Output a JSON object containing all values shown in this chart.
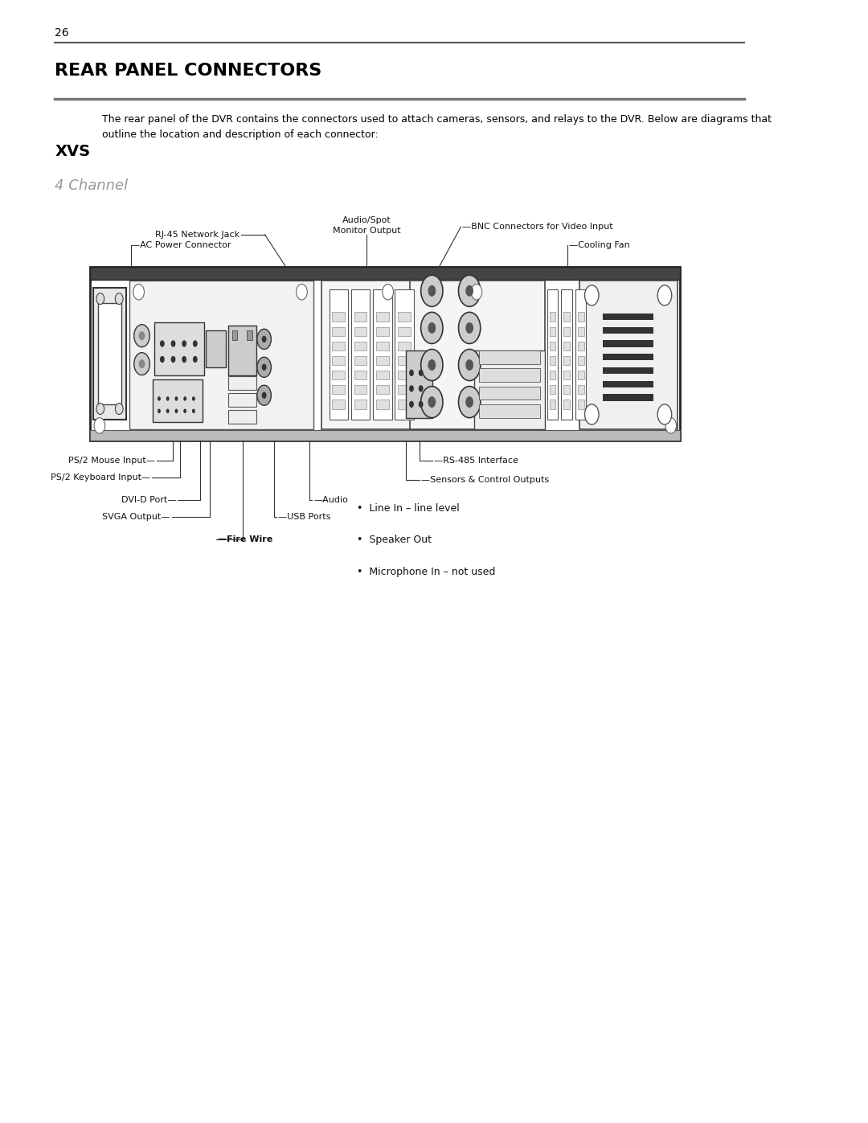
{
  "page_number": "26",
  "title": "REAR PANEL CONNECTORS",
  "intro_text": "The rear panel of the DVR contains the connectors used to attach cameras, sensors, and relays to the DVR. Below are diagrams that\noutline the location and description of each connector:",
  "section_heading": "XVS",
  "sub_heading": "4 Channel",
  "bg_color": "#ffffff",
  "text_color": "#000000",
  "audio_bullets": [
    "Line In – line level",
    "Speaker Out",
    "Microphone In – not used"
  ]
}
